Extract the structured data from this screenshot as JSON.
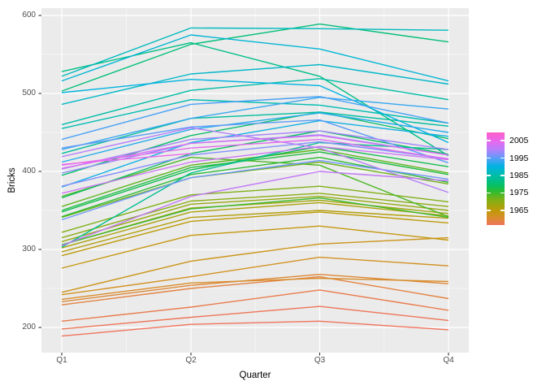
{
  "axes": {
    "x_title": "Quarter",
    "y_title": "Bricks",
    "x_tick_labels": [
      "Q1",
      "Q2",
      "Q3",
      "Q4"
    ],
    "y_tick_labels": [
      "200",
      "300",
      "400",
      "500",
      "600"
    ]
  },
  "legend": {
    "tick_labels": [
      "2005",
      "1995",
      "1985",
      "1975",
      "1965"
    ],
    "tick_years": [
      2005,
      1995,
      1985,
      1975,
      1965
    ]
  },
  "colors": {
    "background": "#ffffff",
    "panel_bg": "#ebebeb",
    "grid_major": "#ffffff",
    "grid_minor": "#f7f7f7",
    "tick_label": "#4d4d4d",
    "axis_title": "#000000",
    "tick_mark": "#333333"
  },
  "chart_data": {
    "type": "line",
    "title": "",
    "xlabel": "Quarter",
    "ylabel": "Bricks",
    "x": [
      "Q1",
      "Q2",
      "Q3",
      "Q4"
    ],
    "y_ticks": [
      200,
      300,
      400,
      500,
      600
    ],
    "y_minor_ticks": [
      250,
      350,
      450,
      550
    ],
    "ylim": [
      168,
      610
    ],
    "grid": true,
    "legend_meta": {
      "style": "colorbar",
      "position": "right",
      "tick_years": [
        2005,
        1995,
        1985,
        1975,
        1965
      ],
      "color_variable": "year"
    },
    "color_gradient_top_to_bottom": [
      [
        0.0,
        "#fb5ec6"
      ],
      [
        0.09,
        "#ea68ee"
      ],
      [
        0.17,
        "#c07bf8"
      ],
      [
        0.24,
        "#8290fb"
      ],
      [
        0.3,
        "#44a4f4"
      ],
      [
        0.37,
        "#00b3e0"
      ],
      [
        0.45,
        "#00bcb0"
      ],
      [
        0.52,
        "#00bf88"
      ],
      [
        0.58,
        "#0abf5d"
      ],
      [
        0.64,
        "#2fbc31"
      ],
      [
        0.72,
        "#7ab217"
      ],
      [
        0.79,
        "#a4a50d"
      ],
      [
        0.85,
        "#c1990a"
      ],
      [
        0.92,
        "#d98d2c"
      ],
      [
        1.0,
        "#f0735c"
      ]
    ],
    "series": [
      {
        "year": 1956,
        "values": [
          189,
          204,
          208,
          197
        ]
      },
      {
        "year": 1957,
        "values": [
          198,
          213,
          227,
          209
        ]
      },
      {
        "year": 1958,
        "values": [
          208,
          226,
          248,
          222
        ]
      },
      {
        "year": 1959,
        "values": [
          229,
          250,
          265,
          237
        ]
      },
      {
        "year": 1960,
        "values": [
          233,
          254,
          268,
          256
        ]
      },
      {
        "year": 1961,
        "values": [
          236,
          257,
          263,
          259
        ]
      },
      {
        "year": 1962,
        "values": [
          242,
          265,
          290,
          279
        ]
      },
      {
        "year": 1963,
        "values": [
          245,
          285,
          307,
          315
        ]
      },
      {
        "year": 1964,
        "values": [
          276,
          318,
          330,
          312
        ]
      },
      {
        "year": 1965,
        "values": [
          292,
          336,
          348,
          334
        ]
      },
      {
        "year": 1966,
        "values": [
          297,
          341,
          350,
          340
        ]
      },
      {
        "year": 1967,
        "values": [
          302,
          348,
          360,
          343
        ]
      },
      {
        "year": 1968,
        "values": [
          306,
          353,
          363,
          346
        ]
      },
      {
        "year": 1969,
        "values": [
          310,
          358,
          368,
          350
        ]
      },
      {
        "year": 1970,
        "values": [
          315,
          362,
          372,
          355
        ]
      },
      {
        "year": 1971,
        "values": [
          322,
          370,
          381,
          361
        ]
      },
      {
        "year": 1972,
        "values": [
          341,
          392,
          412,
          384
        ]
      },
      {
        "year": 1973,
        "values": [
          355,
          408,
          428,
          398
        ]
      },
      {
        "year": 1974,
        "values": [
          368,
          418,
          408,
          342
        ]
      },
      {
        "year": 1975,
        "values": [
          306,
          352,
          366,
          341
        ]
      },
      {
        "year": 1976,
        "values": [
          342,
          396,
          418,
          386
        ]
      },
      {
        "year": 1977,
        "values": [
          350,
          405,
          425,
          396
        ]
      },
      {
        "year": 1978,
        "values": [
          348,
          402,
          432,
          406
        ]
      },
      {
        "year": 1979,
        "values": [
          366,
          423,
          452,
          422
        ]
      },
      {
        "year": 1980,
        "values": [
          395,
          446,
          476,
          442
        ]
      },
      {
        "year": 1981,
        "values": [
          503,
          563,
          589,
          566
        ]
      },
      {
        "year": 1982,
        "values": [
          528,
          565,
          522,
          420
        ]
      },
      {
        "year": 1983,
        "values": [
          303,
          398,
          437,
          428
        ]
      },
      {
        "year": 1984,
        "values": [
          423,
          468,
          476,
          458
        ]
      },
      {
        "year": 1985,
        "values": [
          460,
          504,
          519,
          492
        ]
      },
      {
        "year": 1986,
        "values": [
          455,
          492,
          485,
          462
        ]
      },
      {
        "year": 1987,
        "values": [
          522,
          584,
          583,
          581
        ]
      },
      {
        "year": 1988,
        "values": [
          486,
          525,
          537,
          512
        ]
      },
      {
        "year": 1989,
        "values": [
          516,
          575,
          557,
          516
        ]
      },
      {
        "year": 1990,
        "values": [
          501,
          518,
          510,
          437
        ]
      },
      {
        "year": 1991,
        "values": [
          380,
          437,
          465,
          445
        ]
      },
      {
        "year": 1992,
        "values": [
          412,
          454,
          475,
          450
        ]
      },
      {
        "year": 1993,
        "values": [
          428,
          468,
          495,
          480
        ]
      },
      {
        "year": 1994,
        "values": [
          441,
          486,
          496,
          462
        ]
      },
      {
        "year": 1995,
        "values": [
          430,
          457,
          466,
          411
        ]
      },
      {
        "year": 1996,
        "values": [
          338,
          392,
          414,
          390
        ]
      },
      {
        "year": 1997,
        "values": [
          381,
          421,
          438,
          416
        ]
      },
      {
        "year": 1998,
        "values": [
          398,
          436,
          447,
          421
        ]
      },
      {
        "year": 1999,
        "values": [
          403,
          441,
          452,
          428
        ]
      },
      {
        "year": 2000,
        "values": [
          419,
          456,
          430,
          373
        ]
      },
      {
        "year": 2001,
        "values": [
          305,
          368,
          400,
          388
        ]
      },
      {
        "year": 2002,
        "values": [
          372,
          412,
          432,
          415
        ]
      },
      {
        "year": 2003,
        "values": [
          404,
          436,
          446,
          421
        ]
      },
      {
        "year": 2004,
        "values": [
          408,
          430,
          441,
          416
        ]
      },
      {
        "year": 2005,
        "values": [
          409,
          423,
          null,
          null
        ]
      }
    ]
  }
}
